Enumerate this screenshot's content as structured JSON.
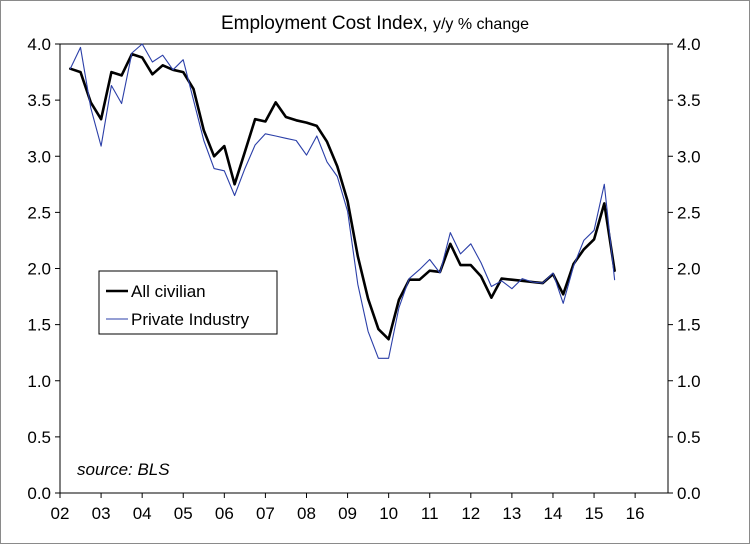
{
  "chart_data": {
    "type": "line",
    "title": "Employment Cost Index,",
    "subtitle": "y/y % change",
    "source": "source: BLS",
    "x_tick_labels": [
      "02",
      "03",
      "04",
      "05",
      "06",
      "07",
      "08",
      "09",
      "10",
      "11",
      "12",
      "13",
      "14",
      "15",
      "16"
    ],
    "x_range": [
      2002,
      2016.8
    ],
    "y_tick_labels": [
      "0.0",
      "0.5",
      "1.0",
      "1.5",
      "2.0",
      "2.5",
      "3.0",
      "3.5",
      "4.0"
    ],
    "ylim": [
      0,
      4
    ],
    "legend_position": "middle-left",
    "grid": false,
    "series": [
      {
        "name": "All civilian",
        "color": "#000000",
        "style": "thick",
        "x": [
          2002.25,
          2002.5,
          2002.75,
          2003.0,
          2003.25,
          2003.5,
          2003.75,
          2004.0,
          2004.25,
          2004.5,
          2004.75,
          2005.0,
          2005.25,
          2005.5,
          2005.75,
          2006.0,
          2006.25,
          2006.5,
          2006.75,
          2007.0,
          2007.25,
          2007.5,
          2007.75,
          2008.0,
          2008.25,
          2008.5,
          2008.75,
          2009.0,
          2009.25,
          2009.5,
          2009.75,
          2010.0,
          2010.25,
          2010.5,
          2010.75,
          2011.0,
          2011.25,
          2011.5,
          2011.75,
          2012.0,
          2012.25,
          2012.5,
          2012.75,
          2013.0,
          2013.25,
          2013.5,
          2013.75,
          2014.0,
          2014.25,
          2014.5,
          2014.75,
          2015.0,
          2015.25,
          2015.5
        ],
        "y": [
          3.78,
          3.75,
          3.48,
          3.33,
          3.75,
          3.72,
          3.91,
          3.88,
          3.73,
          3.81,
          3.77,
          3.75,
          3.6,
          3.23,
          3.0,
          3.09,
          2.75,
          3.04,
          3.33,
          3.31,
          3.48,
          3.35,
          3.32,
          3.3,
          3.27,
          3.13,
          2.91,
          2.6,
          2.11,
          1.73,
          1.46,
          1.37,
          1.72,
          1.9,
          1.9,
          1.98,
          1.97,
          2.22,
          2.03,
          2.03,
          1.93,
          1.74,
          1.91,
          1.9,
          1.89,
          1.88,
          1.87,
          1.95,
          1.77,
          2.04,
          2.17,
          2.26,
          2.58,
          1.98
        ]
      },
      {
        "name": "Private Industry",
        "color": "#2b3fa8",
        "style": "thin",
        "x": [
          2002.25,
          2002.5,
          2002.75,
          2003.0,
          2003.25,
          2003.5,
          2003.75,
          2004.0,
          2004.25,
          2004.5,
          2004.75,
          2005.0,
          2005.25,
          2005.5,
          2005.75,
          2006.0,
          2006.25,
          2006.5,
          2006.75,
          2007.0,
          2007.25,
          2007.5,
          2007.75,
          2008.0,
          2008.25,
          2008.5,
          2008.75,
          2009.0,
          2009.25,
          2009.5,
          2009.75,
          2010.0,
          2010.25,
          2010.5,
          2010.75,
          2011.0,
          2011.25,
          2011.5,
          2011.75,
          2012.0,
          2012.25,
          2012.5,
          2012.75,
          2013.0,
          2013.25,
          2013.5,
          2013.75,
          2014.0,
          2014.25,
          2014.5,
          2014.75,
          2015.0,
          2015.25,
          2015.5
        ],
        "y": [
          3.78,
          3.97,
          3.43,
          3.09,
          3.63,
          3.47,
          3.92,
          4.0,
          3.84,
          3.9,
          3.77,
          3.86,
          3.5,
          3.14,
          2.89,
          2.87,
          2.65,
          2.89,
          3.1,
          3.2,
          3.18,
          3.16,
          3.14,
          3.01,
          3.18,
          2.95,
          2.82,
          2.51,
          1.86,
          1.44,
          1.2,
          1.2,
          1.65,
          1.91,
          1.99,
          2.08,
          1.96,
          2.32,
          2.13,
          2.22,
          2.05,
          1.84,
          1.89,
          1.82,
          1.91,
          1.88,
          1.87,
          1.96,
          1.69,
          2.02,
          2.25,
          2.34,
          2.75,
          1.9
        ]
      }
    ]
  }
}
